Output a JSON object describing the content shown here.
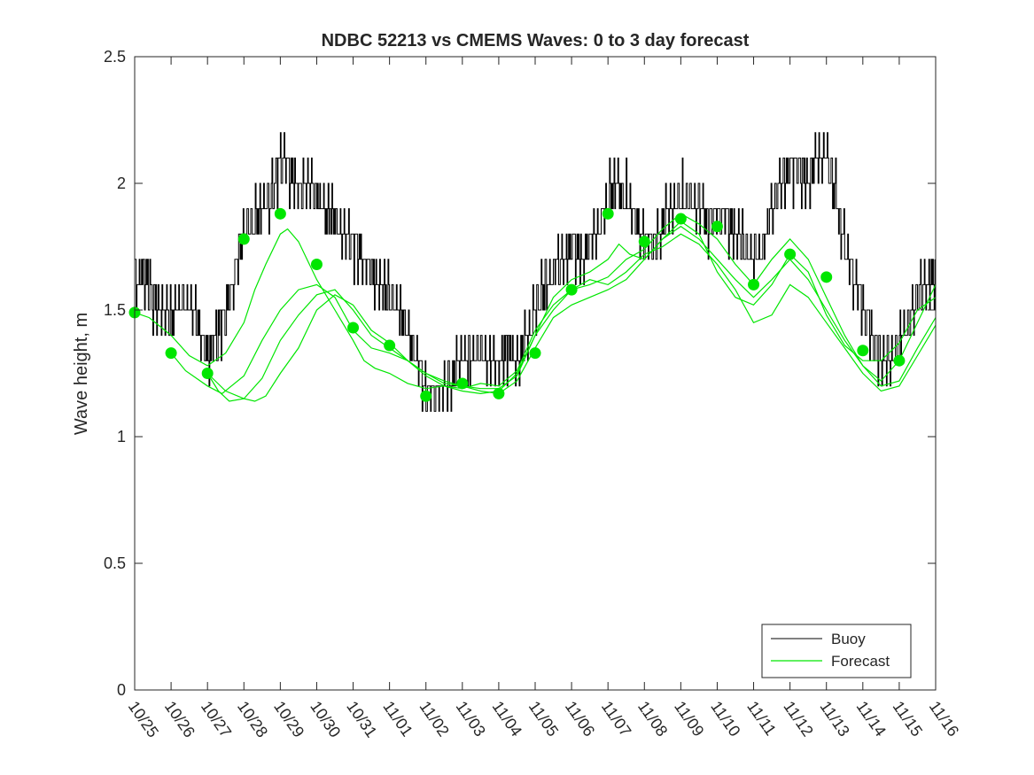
{
  "chart_data": {
    "type": "line",
    "title": "NDBC 52213 vs CMEMS Waves: 0 to 3 day forecast",
    "xlabel": "",
    "ylabel": "Wave height, m",
    "ylim": [
      0,
      2.5
    ],
    "yticks": [
      0,
      0.5,
      1,
      1.5,
      2,
      2.5
    ],
    "ytick_labels": [
      "0",
      "0.5",
      "1",
      "1.5",
      "2",
      "2.5"
    ],
    "xlim": [
      0,
      22
    ],
    "xtick_labels": [
      "10/25",
      "10/26",
      "10/27",
      "10/28",
      "10/29",
      "10/30",
      "10/31",
      "11/01",
      "11/02",
      "11/03",
      "11/04",
      "11/05",
      "11/06",
      "11/07",
      "11/08",
      "11/09",
      "11/10",
      "11/11",
      "11/12",
      "11/13",
      "11/14",
      "11/15",
      "11/16"
    ],
    "legend": {
      "position": "bottom-right",
      "entries": [
        "Buoy",
        "Forecast"
      ]
    },
    "colors": {
      "buoy": "#000000",
      "forecast": "#00e600",
      "axis": "#262626"
    },
    "buoy": {
      "name": "Buoy",
      "x": [
        0,
        0.25,
        0.5,
        0.75,
        1,
        1.25,
        1.5,
        1.75,
        2,
        2.25,
        2.5,
        2.75,
        3,
        3.25,
        3.5,
        3.75,
        4,
        4.25,
        4.5,
        4.75,
        5,
        5.25,
        5.5,
        5.75,
        6,
        6.25,
        6.5,
        6.75,
        7,
        7.25,
        7.5,
        7.75,
        8,
        8.25,
        8.5,
        8.75,
        9,
        9.25,
        9.5,
        9.75,
        10,
        10.25,
        10.5,
        10.75,
        11,
        11.25,
        11.5,
        11.75,
        12,
        12.25,
        12.5,
        12.75,
        13,
        13.25,
        13.5,
        13.75,
        14,
        14.25,
        14.5,
        14.75,
        15,
        15.25,
        15.5,
        15.75,
        16,
        16.25,
        16.5,
        16.75,
        17,
        17.25,
        17.5,
        17.75,
        18,
        18.25,
        18.5,
        18.75,
        19,
        19.25,
        19.5,
        19.75,
        20,
        20.25,
        20.5,
        20.75,
        21,
        21.25,
        21.5,
        21.75,
        22
      ],
      "values": [
        1.6,
        1.65,
        1.55,
        1.5,
        1.45,
        1.55,
        1.5,
        1.45,
        1.3,
        1.4,
        1.5,
        1.65,
        1.8,
        1.85,
        1.9,
        1.95,
        2.1,
        2.05,
        1.95,
        2.0,
        1.95,
        1.9,
        1.85,
        1.8,
        1.75,
        1.7,
        1.65,
        1.6,
        1.55,
        1.5,
        1.4,
        1.3,
        1.2,
        1.15,
        1.2,
        1.25,
        1.3,
        1.3,
        1.35,
        1.3,
        1.3,
        1.35,
        1.3,
        1.4,
        1.5,
        1.6,
        1.65,
        1.7,
        1.75,
        1.7,
        1.75,
        1.85,
        1.95,
        2.0,
        1.95,
        1.85,
        1.8,
        1.75,
        1.85,
        1.9,
        1.95,
        1.95,
        1.9,
        1.85,
        1.9,
        1.85,
        1.8,
        1.75,
        1.7,
        1.75,
        1.9,
        2.0,
        2.05,
        2.05,
        2.0,
        2.1,
        2.1,
        1.95,
        1.75,
        1.6,
        1.5,
        1.4,
        1.3,
        1.3,
        1.35,
        1.45,
        1.55,
        1.6,
        1.65
      ]
    },
    "forecast": {
      "name": "Forecast",
      "runs": [
        {
          "x": [
            0,
            0.4,
            1,
            1.5,
            2,
            2.5,
            3,
            3.3,
            3.6,
            4,
            4.2,
            4.5,
            5,
            5.5,
            6,
            6.3,
            6.6,
            7,
            7.5,
            8,
            8.5,
            9,
            9.5,
            10,
            10.5,
            11,
            11.5,
            12,
            12.5,
            13,
            13.3,
            13.6,
            14,
            14.5,
            15,
            15.5,
            16,
            16.5,
            17,
            17.5,
            18,
            18.5,
            19,
            19.5,
            20,
            20.5,
            21,
            21.5,
            22
          ],
          "values": [
            1.49,
            1.47,
            1.4,
            1.32,
            1.28,
            1.33,
            1.45,
            1.58,
            1.68,
            1.8,
            1.82,
            1.77,
            1.62,
            1.5,
            1.38,
            1.3,
            1.27,
            1.25,
            1.21,
            1.19,
            1.2,
            1.18,
            1.17,
            1.18,
            1.25,
            1.4,
            1.55,
            1.62,
            1.65,
            1.7,
            1.76,
            1.72,
            1.7,
            1.78,
            1.85,
            1.8,
            1.65,
            1.55,
            1.52,
            1.6,
            1.72,
            1.65,
            1.48,
            1.36,
            1.3,
            1.3,
            1.37,
            1.5,
            1.55
          ]
        },
        {
          "x": [
            1,
            1.4,
            2,
            2.4,
            3,
            3.5,
            4,
            4.5,
            5,
            5.5,
            6,
            6.5,
            7,
            7.5,
            8,
            8.5,
            9,
            9.5,
            10,
            10.5,
            11,
            11.5,
            12,
            12.5,
            13,
            13.5,
            14,
            14.5,
            15,
            15.5,
            16,
            16.5,
            17,
            17.5,
            18,
            18.5,
            19,
            19.5,
            20,
            20.5,
            21,
            21.5,
            22
          ],
          "values": [
            1.33,
            1.26,
            1.2,
            1.17,
            1.24,
            1.38,
            1.5,
            1.58,
            1.6,
            1.55,
            1.42,
            1.35,
            1.33,
            1.3,
            1.24,
            1.2,
            1.19,
            1.21,
            1.2,
            1.26,
            1.42,
            1.52,
            1.58,
            1.6,
            1.63,
            1.7,
            1.74,
            1.82,
            1.88,
            1.84,
            1.78,
            1.68,
            1.6,
            1.7,
            1.78,
            1.7,
            1.55,
            1.4,
            1.28,
            1.22,
            1.3,
            1.45,
            1.6
          ]
        },
        {
          "x": [
            2,
            2.3,
            2.6,
            3,
            3.5,
            4,
            4.5,
            5,
            5.5,
            6,
            6.5,
            7,
            7.5,
            8,
            8.5,
            9,
            9.5,
            10,
            10.5,
            11,
            11.5,
            12,
            12.5,
            13,
            13.5,
            14,
            14.5,
            15,
            15.5,
            16,
            16.5,
            17,
            17.5,
            18,
            18.5,
            19,
            19.5,
            20,
            20.5,
            21,
            21.5,
            22
          ],
          "values": [
            1.25,
            1.18,
            1.14,
            1.15,
            1.23,
            1.38,
            1.48,
            1.56,
            1.58,
            1.5,
            1.4,
            1.35,
            1.3,
            1.25,
            1.21,
            1.2,
            1.18,
            1.17,
            1.22,
            1.35,
            1.47,
            1.52,
            1.55,
            1.58,
            1.62,
            1.7,
            1.78,
            1.83,
            1.78,
            1.7,
            1.62,
            1.55,
            1.62,
            1.7,
            1.62,
            1.5,
            1.38,
            1.28,
            1.2,
            1.22,
            1.35,
            1.47
          ]
        },
        {
          "x": [
            2,
            2.5,
            3,
            3.3,
            3.6,
            4,
            4.5,
            5,
            5.5,
            6,
            6.5,
            7,
            7.5,
            8,
            8.5,
            9,
            9.5,
            10,
            10.5,
            11,
            11.5,
            12,
            12.5,
            13,
            13.5,
            14,
            14.5,
            15,
            15.5,
            16,
            16.5,
            17,
            17.5,
            18,
            18.5,
            19,
            19.5,
            20,
            20.5,
            21,
            21.5,
            22
          ],
          "values": [
            1.25,
            1.18,
            1.15,
            1.14,
            1.16,
            1.25,
            1.35,
            1.5,
            1.56,
            1.52,
            1.42,
            1.37,
            1.3,
            1.25,
            1.22,
            1.2,
            1.19,
            1.19,
            1.24,
            1.4,
            1.5,
            1.58,
            1.62,
            1.6,
            1.65,
            1.72,
            1.75,
            1.8,
            1.76,
            1.68,
            1.58,
            1.45,
            1.48,
            1.6,
            1.55,
            1.45,
            1.35,
            1.25,
            1.18,
            1.2,
            1.32,
            1.44
          ]
        }
      ]
    },
    "forecast_markers": {
      "x": [
        0,
        1,
        2,
        3,
        4,
        5,
        6,
        7,
        8,
        9,
        10,
        11,
        12,
        13,
        14,
        15,
        16,
        17,
        18,
        19,
        20,
        21
      ],
      "values": [
        1.49,
        1.33,
        1.25,
        1.78,
        1.88,
        1.68,
        1.43,
        1.36,
        1.16,
        1.21,
        1.17,
        1.33,
        1.58,
        1.88,
        1.77,
        1.86,
        1.83,
        1.6,
        1.72,
        1.63,
        1.34,
        1.3
      ]
    }
  }
}
